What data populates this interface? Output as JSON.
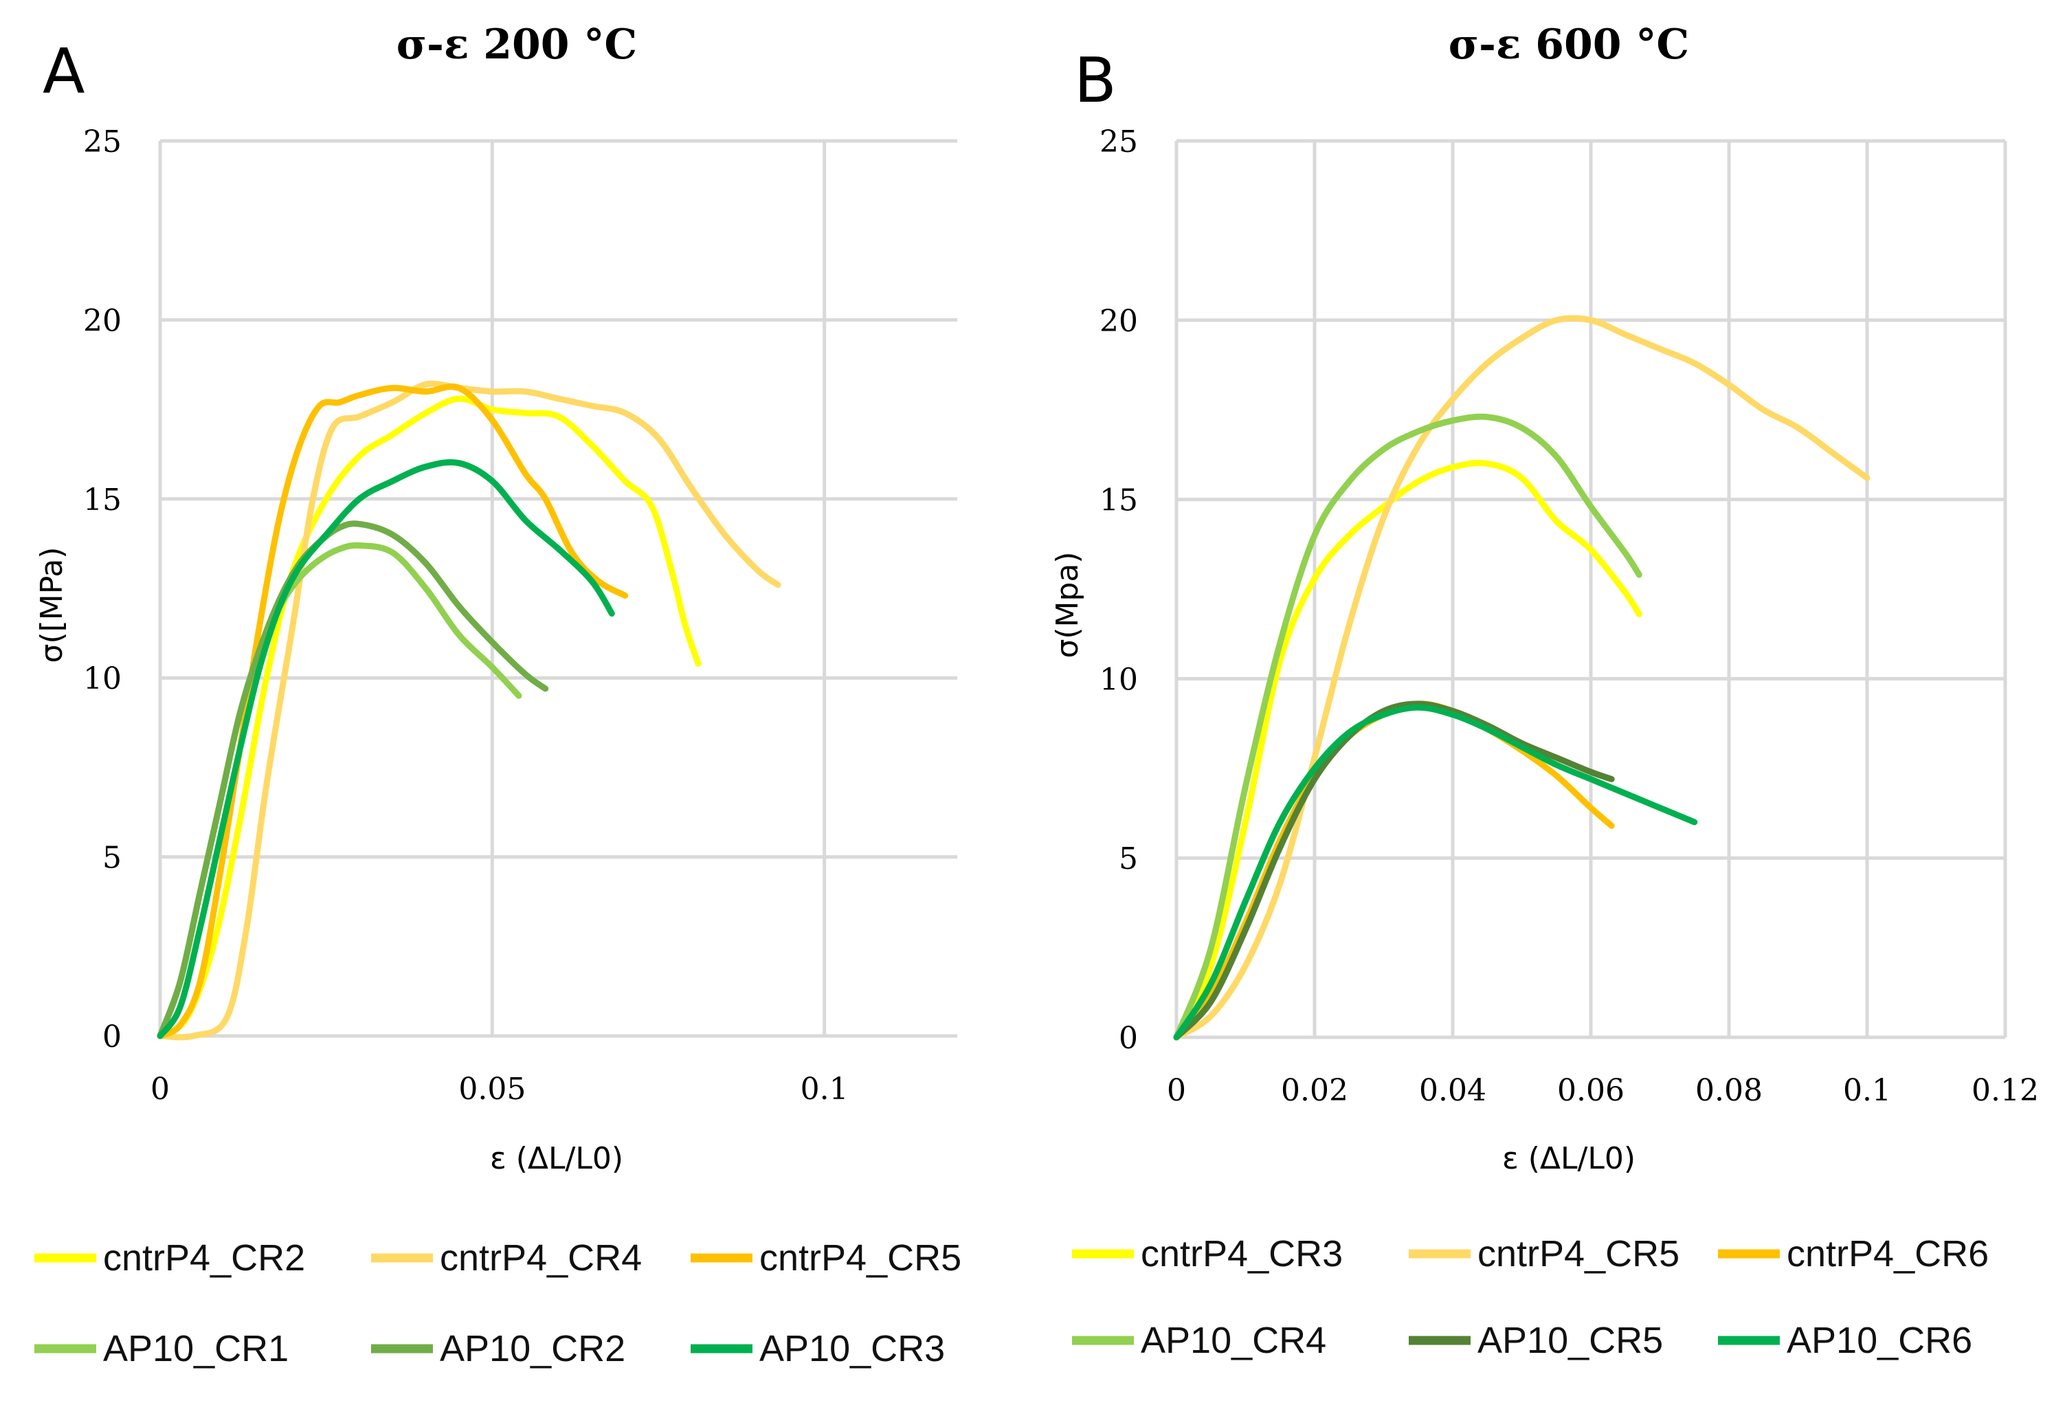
{
  "panels": [
    {
      "letter": "A",
      "chart_data": {
        "type": "line",
        "title": "σ-ε 200 °C",
        "xlabel": "ε (ΔL/L0)",
        "ylabel": "σ([MPa)",
        "xlim": [
          0,
          0.12
        ],
        "ylim": [
          0,
          25
        ],
        "xticks": [
          0,
          0.05,
          0.1
        ],
        "xtick_labels": [
          "0",
          "0.05",
          "0.1"
        ],
        "yticks": [
          0,
          5,
          10,
          15,
          20,
          25
        ],
        "ytick_labels": [
          "0",
          "5",
          "10",
          "15",
          "20",
          "25"
        ],
        "grid": true,
        "legend_position": "bottom",
        "series": [
          {
            "name": "cntrP4_CR2",
            "color": "#ffff00",
            "x": [
              0,
              0.004,
              0.008,
              0.012,
              0.016,
              0.02,
              0.025,
              0.03,
              0.035,
              0.04,
              0.045,
              0.05,
              0.055,
              0.06,
              0.065,
              0.07,
              0.074,
              0.077,
              0.079,
              0.081
            ],
            "y": [
              0,
              0.5,
              2.5,
              6,
              10,
              13,
              15,
              16.2,
              16.8,
              17.4,
              17.8,
              17.5,
              17.4,
              17.3,
              16.5,
              15.5,
              14.8,
              13,
              11.5,
              10.4
            ]
          },
          {
            "name": "cntrP4_CR4",
            "color": "#ffd966",
            "x": [
              0,
              0.005,
              0.01,
              0.013,
              0.016,
              0.02,
              0.023,
              0.026,
              0.03,
              0.035,
              0.04,
              0.045,
              0.05,
              0.055,
              0.06,
              0.065,
              0.07,
              0.075,
              0.08,
              0.085,
              0.09,
              0.093
            ],
            "y": [
              0,
              0,
              0.5,
              3,
              7,
              11.5,
              15,
              17,
              17.3,
              17.7,
              18.2,
              18.1,
              18,
              18,
              17.8,
              17.6,
              17.4,
              16.7,
              15.3,
              14,
              13,
              12.6
            ]
          },
          {
            "name": "cntrP4_CR5",
            "color": "#ffc000",
            "x": [
              0,
              0.003,
              0.006,
              0.009,
              0.012,
              0.015,
              0.018,
              0.021,
              0.024,
              0.027,
              0.03,
              0.035,
              0.04,
              0.045,
              0.05,
              0.055,
              0.058,
              0.062,
              0.066,
              0.07
            ],
            "y": [
              0,
              0.3,
              1.5,
              4.5,
              8,
              11.5,
              14.5,
              16.5,
              17.6,
              17.7,
              17.9,
              18.1,
              18,
              18.1,
              17.2,
              15.7,
              15,
              13.5,
              12.7,
              12.3
            ]
          },
          {
            "name": "AP10_CR1",
            "color": "#92d050",
            "x": [
              0,
              0.003,
              0.006,
              0.009,
              0.012,
              0.015,
              0.018,
              0.021,
              0.024,
              0.027,
              0.03,
              0.035,
              0.04,
              0.045,
              0.05,
              0.054
            ],
            "y": [
              0,
              1.5,
              4,
              6.5,
              9,
              10.8,
              12,
              12.8,
              13.3,
              13.6,
              13.7,
              13.5,
              12.5,
              11.2,
              10.3,
              9.5
            ]
          },
          {
            "name": "AP10_CR2",
            "color": "#70ad47",
            "x": [
              0,
              0.003,
              0.006,
              0.009,
              0.012,
              0.015,
              0.018,
              0.021,
              0.024,
              0.027,
              0.03,
              0.035,
              0.04,
              0.045,
              0.05,
              0.055,
              0.058
            ],
            "y": [
              0,
              1.5,
              4,
              6.5,
              9,
              10.8,
              12.2,
              13.2,
              13.8,
              14.2,
              14.3,
              14,
              13.2,
              12,
              11,
              10.1,
              9.7
            ]
          },
          {
            "name": "AP10_CR3",
            "color": "#00b050",
            "x": [
              0,
              0.003,
              0.006,
              0.009,
              0.012,
              0.015,
              0.018,
              0.021,
              0.025,
              0.03,
              0.035,
              0.04,
              0.045,
              0.05,
              0.055,
              0.06,
              0.065,
              0.068
            ],
            "y": [
              0,
              0.8,
              3,
              5.5,
              8,
              10.3,
              12,
              13.1,
              14,
              15,
              15.5,
              15.9,
              16,
              15.5,
              14.4,
              13.6,
              12.7,
              11.8
            ]
          }
        ]
      }
    },
    {
      "letter": "B",
      "chart_data": {
        "type": "line",
        "title": "σ-ε  600 °C",
        "xlabel": "ε (ΔL/L0)",
        "ylabel": "σ(Mpa)",
        "xlim": [
          0,
          0.12
        ],
        "ylim": [
          0,
          25
        ],
        "xticks": [
          0,
          0.02,
          0.04,
          0.06,
          0.08,
          0.1,
          0.12
        ],
        "xtick_labels": [
          "0",
          "0.02",
          "0.04",
          "0.06",
          "0.08",
          "0.1",
          "0.12"
        ],
        "yticks": [
          0,
          5,
          10,
          15,
          20,
          25
        ],
        "ytick_labels": [
          "0",
          "5",
          "10",
          "15",
          "20",
          "25"
        ],
        "grid": true,
        "legend_position": "bottom",
        "series": [
          {
            "name": "cntrP4_CR3",
            "color": "#ffff00",
            "x": [
              0,
              0.005,
              0.01,
              0.015,
              0.02,
              0.025,
              0.03,
              0.035,
              0.04,
              0.045,
              0.05,
              0.055,
              0.06,
              0.065,
              0.067
            ],
            "y": [
              0,
              2,
              6,
              10.5,
              12.8,
              14,
              14.8,
              15.5,
              15.9,
              16,
              15.6,
              14.4,
              13.6,
              12.4,
              11.8
            ]
          },
          {
            "name": "cntrP4_CR5",
            "color": "#ffd966",
            "x": [
              0,
              0.005,
              0.01,
              0.015,
              0.02,
              0.025,
              0.03,
              0.035,
              0.04,
              0.045,
              0.05,
              0.055,
              0.06,
              0.065,
              0.07,
              0.075,
              0.08,
              0.085,
              0.09,
              0.095,
              0.1
            ],
            "y": [
              0,
              0.6,
              2,
              4.3,
              7.8,
              11.5,
              14.5,
              16.5,
              17.8,
              18.8,
              19.5,
              20,
              20,
              19.6,
              19.2,
              18.8,
              18.2,
              17.5,
              17,
              16.3,
              15.6
            ]
          },
          {
            "name": "cntrP4_CR6",
            "color": "#ffc000",
            "x": [
              0,
              0.005,
              0.01,
              0.015,
              0.02,
              0.025,
              0.03,
              0.035,
              0.04,
              0.045,
              0.05,
              0.055,
              0.06,
              0.063
            ],
            "y": [
              0,
              1.2,
              3.2,
              5.5,
              7.3,
              8.4,
              9,
              9.3,
              9.1,
              8.6,
              8,
              7.3,
              6.4,
              5.9
            ]
          },
          {
            "name": "AP10_CR4",
            "color": "#92d050",
            "x": [
              0,
              0.005,
              0.01,
              0.015,
              0.02,
              0.025,
              0.03,
              0.035,
              0.04,
              0.045,
              0.05,
              0.055,
              0.06,
              0.065,
              0.067
            ],
            "y": [
              0,
              2.5,
              7,
              11,
              14,
              15.5,
              16.4,
              16.9,
              17.2,
              17.3,
              17,
              16.2,
              14.8,
              13.5,
              12.9
            ]
          },
          {
            "name": "AP10_CR5",
            "color": "#548235",
            "x": [
              0,
              0.005,
              0.01,
              0.015,
              0.02,
              0.025,
              0.03,
              0.035,
              0.04,
              0.045,
              0.05,
              0.055,
              0.06,
              0.063
            ],
            "y": [
              0,
              1,
              3,
              5.3,
              7.2,
              8.4,
              9.1,
              9.3,
              9.1,
              8.7,
              8.2,
              7.8,
              7.4,
              7.2
            ]
          },
          {
            "name": "AP10_CR6",
            "color": "#00b050",
            "x": [
              0,
              0.005,
              0.01,
              0.015,
              0.02,
              0.025,
              0.03,
              0.035,
              0.04,
              0.045,
              0.05,
              0.055,
              0.06,
              0.065,
              0.07,
              0.075
            ],
            "y": [
              0,
              1.5,
              3.8,
              6,
              7.5,
              8.5,
              9,
              9.2,
              9,
              8.6,
              8.1,
              7.6,
              7.2,
              6.8,
              6.4,
              6
            ]
          }
        ]
      }
    }
  ]
}
